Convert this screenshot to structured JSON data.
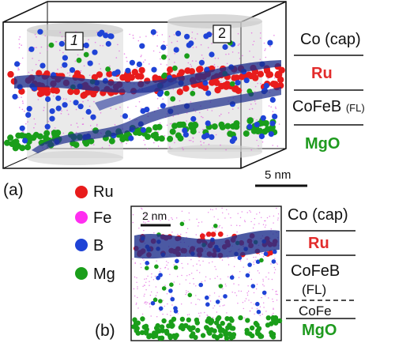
{
  "panel_a": {
    "label": "(a)",
    "cylinder_labels": [
      "1",
      "2"
    ],
    "scale_bar": "5 nm",
    "layers": {
      "cap": "Co (cap)",
      "ru": "Ru",
      "fl_main": "CoFeB",
      "fl_suffix": "(FL)",
      "mgo": "MgO"
    }
  },
  "panel_b": {
    "label": "(b)",
    "scale_bar": "2 nm",
    "layers": {
      "cap": "Co (cap)",
      "ru": "Ru",
      "cofeb": "CoFeB",
      "fl": "(FL)",
      "cofe": "CoFe",
      "mgo": "MgO"
    }
  },
  "legend": [
    {
      "name": "Ru",
      "color": "#e81c1c"
    },
    {
      "name": "Fe",
      "color": "#ff2ef0"
    },
    {
      "name": "B",
      "color": "#1f43d6"
    },
    {
      "name": "Mg",
      "color": "#1a9e1a"
    }
  ],
  "colors": {
    "ru": "#e81c1c",
    "fe": "#e36ae0",
    "b": "#1f43d6",
    "mg": "#1a9e1a",
    "band": "#1e2f8c",
    "mgo_text": "#1e9a1e",
    "ru_text": "#e22b2b"
  }
}
